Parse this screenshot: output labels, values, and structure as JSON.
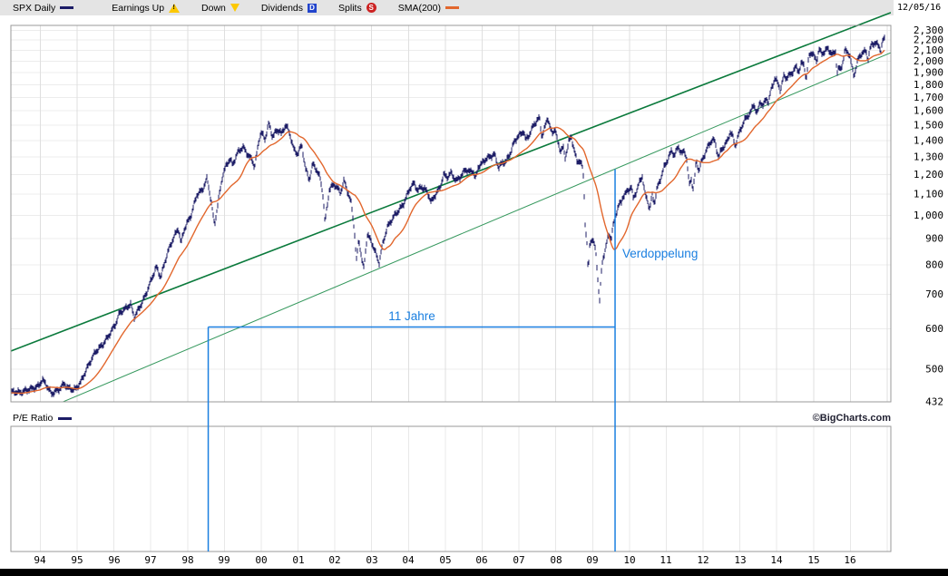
{
  "legend": {
    "symbol": "SPX Daily",
    "earnings_up": "Earnings Up",
    "down": "Down",
    "dividends": "Dividends",
    "dividends_letter": "D",
    "splits": "Splits",
    "splits_letter": "S",
    "sma": "SMA(200)",
    "date": "12/05/16"
  },
  "pe_panel": {
    "label": "P/E Ratio",
    "credit": "©BigCharts.com"
  },
  "colors": {
    "price": "#1c1c66",
    "sma": "#e2672d",
    "trend_major": "#0b7a3c",
    "trend_minor": "#35985d",
    "annotation_blue": "#1a7fe0",
    "grid_v": "#dfdfdf",
    "grid_h": "#ececec",
    "border": "#999999"
  },
  "chart_data": {
    "type": "line",
    "title": "SPX Daily",
    "y_scale": "log",
    "x_range": [
      1993.2,
      2017.1
    ],
    "y_range": [
      432,
      2350
    ],
    "y_ticks": [
      2300,
      2200,
      2100,
      2000,
      1900,
      1800,
      1700,
      1600,
      1500,
      1400,
      1300,
      1200,
      1100,
      1000,
      900,
      800,
      700,
      600,
      500,
      432
    ],
    "x_tick_years": [
      1994,
      1995,
      1996,
      1997,
      1998,
      1999,
      2000,
      2001,
      2002,
      2003,
      2004,
      2005,
      2006,
      2007,
      2008,
      2009,
      2010,
      2011,
      2012,
      2013,
      2014,
      2015,
      2016
    ],
    "x_tick_labels": [
      "94",
      "95",
      "96",
      "97",
      "98",
      "99",
      "00",
      "01",
      "02",
      "03",
      "04",
      "05",
      "06",
      "07",
      "08",
      "09",
      "10",
      "11",
      "12",
      "13",
      "14",
      "15",
      "16"
    ],
    "series": [
      {
        "name": "SPX close",
        "color": "#1c1c66",
        "points": [
          [
            1993.2,
            450
          ],
          [
            1993.45,
            448
          ],
          [
            1993.7,
            459
          ],
          [
            1993.95,
            466
          ],
          [
            1994.05,
            478
          ],
          [
            1994.15,
            467
          ],
          [
            1994.3,
            445
          ],
          [
            1994.5,
            455
          ],
          [
            1994.65,
            470
          ],
          [
            1994.75,
            462
          ],
          [
            1994.95,
            459
          ],
          [
            1995.1,
            472
          ],
          [
            1995.3,
            505
          ],
          [
            1995.5,
            540
          ],
          [
            1995.7,
            562
          ],
          [
            1995.9,
            592
          ],
          [
            1996.05,
            615
          ],
          [
            1996.15,
            642
          ],
          [
            1996.3,
            652
          ],
          [
            1996.45,
            668
          ],
          [
            1996.55,
            632
          ],
          [
            1996.7,
            665
          ],
          [
            1996.85,
            700
          ],
          [
            1997.0,
            745
          ],
          [
            1997.15,
            790
          ],
          [
            1997.27,
            752
          ],
          [
            1997.45,
            840
          ],
          [
            1997.6,
            900
          ],
          [
            1997.75,
            950
          ],
          [
            1997.82,
            885
          ],
          [
            1997.9,
            940
          ],
          [
            1997.98,
            965
          ],
          [
            1998.1,
            1000
          ],
          [
            1998.25,
            1090
          ],
          [
            1998.4,
            1115
          ],
          [
            1998.53,
            1180
          ],
          [
            1998.62,
            1090
          ],
          [
            1998.73,
            962
          ],
          [
            1998.85,
            1090
          ],
          [
            1998.95,
            1200
          ],
          [
            1999.05,
            1250
          ],
          [
            1999.15,
            1285
          ],
          [
            1999.22,
            1245
          ],
          [
            1999.35,
            1315
          ],
          [
            1999.5,
            1360
          ],
          [
            1999.6,
            1330
          ],
          [
            1999.75,
            1290
          ],
          [
            1999.82,
            1252
          ],
          [
            1999.95,
            1420
          ],
          [
            2000.0,
            1455
          ],
          [
            2000.1,
            1400
          ],
          [
            2000.2,
            1505
          ],
          [
            2000.3,
            1420
          ],
          [
            2000.4,
            1450
          ],
          [
            2000.5,
            1470
          ],
          [
            2000.55,
            1440
          ],
          [
            2000.67,
            1515
          ],
          [
            2000.8,
            1430
          ],
          [
            2000.9,
            1340
          ],
          [
            2000.98,
            1320
          ],
          [
            2001.1,
            1365
          ],
          [
            2001.2,
            1230
          ],
          [
            2001.3,
            1165
          ],
          [
            2001.4,
            1255
          ],
          [
            2001.5,
            1230
          ],
          [
            2001.6,
            1185
          ],
          [
            2001.68,
            1100
          ],
          [
            2001.73,
            972
          ],
          [
            2001.85,
            1130
          ],
          [
            2001.98,
            1150
          ],
          [
            2002.05,
            1132
          ],
          [
            2002.15,
            1100
          ],
          [
            2002.25,
            1162
          ],
          [
            2002.35,
            1105
          ],
          [
            2002.45,
            1050
          ],
          [
            2002.54,
            920
          ],
          [
            2002.58,
            812
          ],
          [
            2002.65,
            905
          ],
          [
            2002.72,
            835
          ],
          [
            2002.78,
            788
          ],
          [
            2002.88,
            920
          ],
          [
            2002.95,
            900
          ],
          [
            2003.0,
            885
          ],
          [
            2003.1,
            842
          ],
          [
            2003.2,
            802
          ],
          [
            2003.3,
            875
          ],
          [
            2003.42,
            945
          ],
          [
            2003.55,
            985
          ],
          [
            2003.65,
            1012
          ],
          [
            2003.75,
            1032
          ],
          [
            2003.85,
            1052
          ],
          [
            2003.95,
            1090
          ],
          [
            2004.05,
            1130
          ],
          [
            2004.15,
            1148
          ],
          [
            2004.25,
            1112
          ],
          [
            2004.35,
            1132
          ],
          [
            2004.45,
            1125
          ],
          [
            2004.55,
            1098
          ],
          [
            2004.62,
            1066
          ],
          [
            2004.75,
            1112
          ],
          [
            2004.85,
            1132
          ],
          [
            2004.95,
            1200
          ],
          [
            2005.05,
            1182
          ],
          [
            2005.15,
            1202
          ],
          [
            2005.3,
            1162
          ],
          [
            2005.45,
            1200
          ],
          [
            2005.55,
            1236
          ],
          [
            2005.65,
            1222
          ],
          [
            2005.75,
            1230
          ],
          [
            2005.82,
            1182
          ],
          [
            2005.9,
            1250
          ],
          [
            2005.98,
            1256
          ],
          [
            2006.1,
            1282
          ],
          [
            2006.2,
            1292
          ],
          [
            2006.33,
            1312
          ],
          [
            2006.45,
            1242
          ],
          [
            2006.55,
            1272
          ],
          [
            2006.65,
            1282
          ],
          [
            2006.75,
            1322
          ],
          [
            2006.85,
            1382
          ],
          [
            2006.95,
            1420
          ],
          [
            2007.05,
            1432
          ],
          [
            2007.13,
            1456
          ],
          [
            2007.18,
            1392
          ],
          [
            2007.3,
            1440
          ],
          [
            2007.4,
            1502
          ],
          [
            2007.5,
            1540
          ],
          [
            2007.56,
            1556
          ],
          [
            2007.62,
            1432
          ],
          [
            2007.7,
            1490
          ],
          [
            2007.78,
            1562
          ],
          [
            2007.85,
            1482
          ],
          [
            2007.9,
            1442
          ],
          [
            2007.98,
            1476
          ],
          [
            2008.05,
            1382
          ],
          [
            2008.12,
            1332
          ],
          [
            2008.2,
            1352
          ],
          [
            2008.25,
            1282
          ],
          [
            2008.35,
            1392
          ],
          [
            2008.42,
            1422
          ],
          [
            2008.5,
            1352
          ],
          [
            2008.58,
            1272
          ],
          [
            2008.65,
            1292
          ],
          [
            2008.72,
            1252
          ],
          [
            2008.76,
            1162
          ],
          [
            2008.8,
            952
          ],
          [
            2008.85,
            882
          ],
          [
            2008.88,
            762
          ],
          [
            2008.92,
            872
          ],
          [
            2008.95,
            882
          ],
          [
            2008.98,
            902
          ],
          [
            2009.05,
            872
          ],
          [
            2009.1,
            822
          ],
          [
            2009.15,
            732
          ],
          [
            2009.19,
            678
          ],
          [
            2009.25,
            792
          ],
          [
            2009.3,
            832
          ],
          [
            2009.38,
            882
          ],
          [
            2009.45,
            922
          ],
          [
            2009.5,
            902
          ],
          [
            2009.55,
            952
          ],
          [
            2009.62,
            1002
          ],
          [
            2009.7,
            1052
          ],
          [
            2009.78,
            1062
          ],
          [
            2009.82,
            1092
          ],
          [
            2009.9,
            1102
          ],
          [
            2009.95,
            1112
          ],
          [
            2010.05,
            1132
          ],
          [
            2010.1,
            1072
          ],
          [
            2010.2,
            1112
          ],
          [
            2010.3,
            1172
          ],
          [
            2010.35,
            1192
          ],
          [
            2010.42,
            1102
          ],
          [
            2010.5,
            1072
          ],
          [
            2010.55,
            1032
          ],
          [
            2010.62,
            1102
          ],
          [
            2010.68,
            1062
          ],
          [
            2010.75,
            1132
          ],
          [
            2010.85,
            1182
          ],
          [
            2010.95,
            1242
          ],
          [
            2011.05,
            1282
          ],
          [
            2011.15,
            1332
          ],
          [
            2011.22,
            1302
          ],
          [
            2011.33,
            1362
          ],
          [
            2011.42,
            1322
          ],
          [
            2011.5,
            1342
          ],
          [
            2011.56,
            1292
          ],
          [
            2011.62,
            1152
          ],
          [
            2011.68,
            1182
          ],
          [
            2011.73,
            1132
          ],
          [
            2011.78,
            1202
          ],
          [
            2011.82,
            1282
          ],
          [
            2011.88,
            1222
          ],
          [
            2011.95,
            1262
          ],
          [
            2012.05,
            1312
          ],
          [
            2012.15,
            1362
          ],
          [
            2012.25,
            1402
          ],
          [
            2012.32,
            1392
          ],
          [
            2012.42,
            1302
          ],
          [
            2012.5,
            1352
          ],
          [
            2012.6,
            1382
          ],
          [
            2012.68,
            1412
          ],
          [
            2012.73,
            1462
          ],
          [
            2012.8,
            1432
          ],
          [
            2012.87,
            1362
          ],
          [
            2012.95,
            1422
          ],
          [
            2013.05,
            1482
          ],
          [
            2013.12,
            1522
          ],
          [
            2013.2,
            1552
          ],
          [
            2013.3,
            1592
          ],
          [
            2013.38,
            1652
          ],
          [
            2013.47,
            1582
          ],
          [
            2013.55,
            1682
          ],
          [
            2013.63,
            1642
          ],
          [
            2013.72,
            1702
          ],
          [
            2013.78,
            1662
          ],
          [
            2013.85,
            1762
          ],
          [
            2013.95,
            1842
          ],
          [
            2014.05,
            1792
          ],
          [
            2014.1,
            1742
          ],
          [
            2014.2,
            1872
          ],
          [
            2014.27,
            1852
          ],
          [
            2014.35,
            1882
          ],
          [
            2014.45,
            1922
          ],
          [
            2014.53,
            1962
          ],
          [
            2014.6,
            1922
          ],
          [
            2014.68,
            1992
          ],
          [
            2014.75,
            1972
          ],
          [
            2014.8,
            1832
          ],
          [
            2014.88,
            2052
          ],
          [
            2014.95,
            2072
          ],
          [
            2015.03,
            2022
          ],
          [
            2015.08,
            1992
          ],
          [
            2015.15,
            2102
          ],
          [
            2015.22,
            2062
          ],
          [
            2015.3,
            2092
          ],
          [
            2015.38,
            2122
          ],
          [
            2015.45,
            2102
          ],
          [
            2015.52,
            2072
          ],
          [
            2015.6,
            2102
          ],
          [
            2015.64,
            1902
          ],
          [
            2015.68,
            1952
          ],
          [
            2015.73,
            1922
          ],
          [
            2015.8,
            2002
          ],
          [
            2015.85,
            2092
          ],
          [
            2015.9,
            2082
          ],
          [
            2015.98,
            2052
          ],
          [
            2016.05,
            1922
          ],
          [
            2016.1,
            1862
          ],
          [
            2016.15,
            1932
          ],
          [
            2016.22,
            2022
          ],
          [
            2016.3,
            2072
          ],
          [
            2016.38,
            2092
          ],
          [
            2016.44,
            2102
          ],
          [
            2016.47,
            2012
          ],
          [
            2016.52,
            2102
          ],
          [
            2016.58,
            2172
          ],
          [
            2016.65,
            2182
          ],
          [
            2016.72,
            2162
          ],
          [
            2016.78,
            2142
          ],
          [
            2016.83,
            2092
          ],
          [
            2016.88,
            2182
          ],
          [
            2016.93,
            2205
          ]
        ]
      },
      {
        "name": "SMA(200)",
        "color": "#e2672d",
        "derived": "moving-average",
        "window_days": 200
      },
      {
        "name": "trendline-major",
        "color": "#0b7a3c",
        "width": 1.6,
        "points": [
          [
            1993.2,
            543
          ],
          [
            2017.1,
            2489
          ]
        ]
      },
      {
        "name": "trendline-minor",
        "color": "#35985d",
        "width": 1,
        "points": [
          [
            1994.55,
            430
          ],
          [
            2017.1,
            2078
          ]
        ]
      }
    ],
    "annotations": [
      {
        "type": "measure",
        "label": "11 Jahre",
        "t1": 1998.56,
        "t2": 2009.61,
        "price": 605,
        "color": "#1a7fe0"
      },
      {
        "type": "vline",
        "label": "Verdoppelung",
        "t": 2009.61,
        "price_top": 1230,
        "label_price": 840,
        "color": "#1a7fe0"
      }
    ]
  }
}
